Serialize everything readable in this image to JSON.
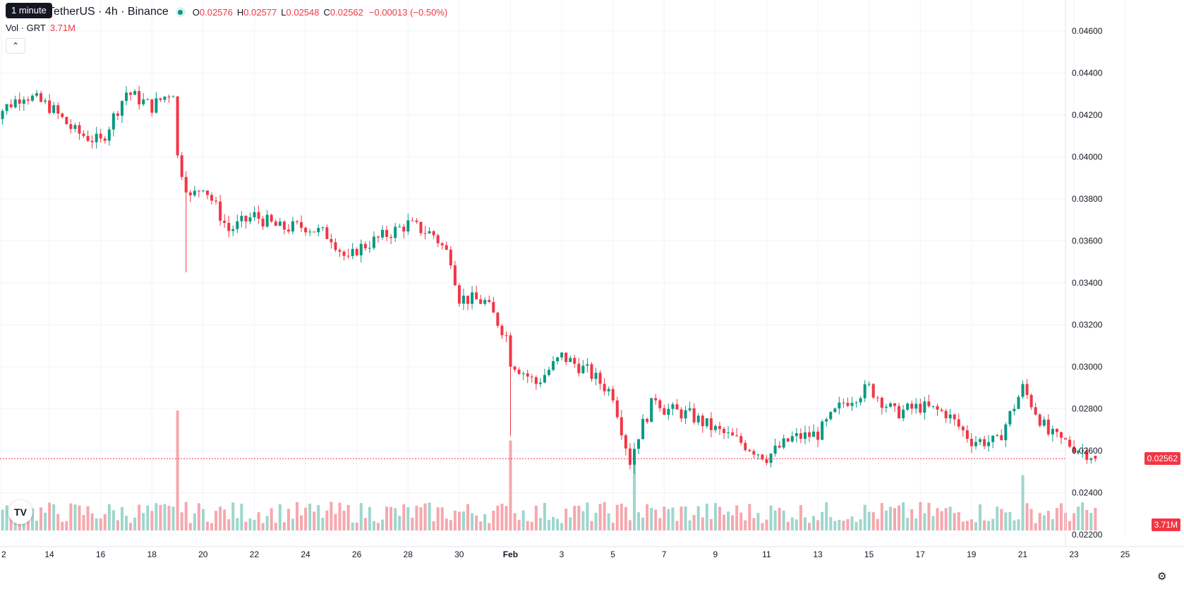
{
  "header": {
    "symbol": "TetherUS · 4h · Binance",
    "ohlc": [
      {
        "key": "O",
        "value": "0.02576"
      },
      {
        "key": "H",
        "value": "0.02577"
      },
      {
        "key": "L",
        "value": "0.02548"
      },
      {
        "key": "C",
        "value": "0.02562"
      }
    ],
    "change": "−0.00013 (−0.50%)",
    "tooltip": "1 minute",
    "collapse_icon": "chevron-up-icon"
  },
  "volume_legend": {
    "label": "Vol · GRT",
    "value": "3.71M"
  },
  "price_label": "0.02562",
  "volume_label": "3.71M",
  "colors": {
    "up": "#089981",
    "down": "#f23645",
    "up_volume": "#9ed6cd",
    "down_volume": "#f6a7ad",
    "grid": "#f0f3fa",
    "last_price_line": "#f23645"
  },
  "chart_data": {
    "type": "candlestick",
    "timeframe": "4h",
    "y_range": [
      0.022,
      0.046
    ],
    "y_ticks": [
      "0.02200",
      "0.02400",
      "0.02600",
      "0.02800",
      "0.03000",
      "0.03200",
      "0.03400",
      "0.03600",
      "0.03800",
      "0.04000",
      "0.04200",
      "0.04400",
      "0.04600"
    ],
    "x_ticks": [
      "2",
      "14",
      "16",
      "18",
      "20",
      "22",
      "24",
      "26",
      "28",
      "30",
      "Feb",
      "3",
      "5",
      "7",
      "9",
      "11",
      "13",
      "15",
      "17",
      "19",
      "21",
      "23",
      "25"
    ],
    "grid": true,
    "price_anchors": [
      {
        "date": "Jan 12",
        "close": 0.0421
      },
      {
        "date": "Jan 13",
        "close": 0.043
      },
      {
        "date": "Jan 14",
        "close": 0.0424
      },
      {
        "date": "Jan 15",
        "close": 0.0412
      },
      {
        "date": "Jan 16",
        "close": 0.0407
      },
      {
        "date": "Jan 17",
        "close": 0.0431
      },
      {
        "date": "Jan 18",
        "close": 0.0424
      },
      {
        "date": "Jan 18 20:00",
        "close": 0.0432
      },
      {
        "date": "Jan 19",
        "close": 0.04
      },
      {
        "date": "Jan 19 12:00",
        "close": 0.038
      },
      {
        "date": "Jan 20",
        "close": 0.0387
      },
      {
        "date": "Jan 21",
        "close": 0.0365
      },
      {
        "date": "Jan 22",
        "close": 0.0372
      },
      {
        "date": "Jan 23",
        "close": 0.0366
      },
      {
        "date": "Jan 24",
        "close": 0.0367
      },
      {
        "date": "Jan 25",
        "close": 0.0362
      },
      {
        "date": "Jan 25 16:00",
        "close": 0.035
      },
      {
        "date": "Jan 26",
        "close": 0.0356
      },
      {
        "date": "Jan 27",
        "close": 0.0362
      },
      {
        "date": "Jan 28",
        "close": 0.0368
      },
      {
        "date": "Jan 29",
        "close": 0.0363
      },
      {
        "date": "Jan 29 16:00",
        "close": 0.0352
      },
      {
        "date": "Jan 30",
        "close": 0.0333
      },
      {
        "date": "Jan 31",
        "close": 0.0331
      },
      {
        "date": "Jan 31 20:00",
        "close": 0.0315
      },
      {
        "date": "Feb 1",
        "close": 0.0303
      },
      {
        "date": "Feb 2",
        "close": 0.0292
      },
      {
        "date": "Feb 3",
        "close": 0.0305
      },
      {
        "date": "Feb 4",
        "close": 0.0298
      },
      {
        "date": "Feb 5",
        "close": 0.0287
      },
      {
        "date": "Feb 5 16:00",
        "close": 0.0255
      },
      {
        "date": "Feb 6",
        "close": 0.0268
      },
      {
        "date": "Feb 6 16:00",
        "close": 0.0286
      },
      {
        "date": "Feb 7",
        "close": 0.028
      },
      {
        "date": "Feb 8",
        "close": 0.0277
      },
      {
        "date": "Feb 9",
        "close": 0.027
      },
      {
        "date": "Feb 10",
        "close": 0.0264
      },
      {
        "date": "Feb 11",
        "close": 0.0257
      },
      {
        "date": "Feb 12",
        "close": 0.0266
      },
      {
        "date": "Feb 13",
        "close": 0.0268
      },
      {
        "date": "Feb 14",
        "close": 0.0283
      },
      {
        "date": "Feb 15",
        "close": 0.029
      },
      {
        "date": "Feb 16",
        "close": 0.0278
      },
      {
        "date": "Feb 17",
        "close": 0.0281
      },
      {
        "date": "Feb 18",
        "close": 0.0278
      },
      {
        "date": "Feb 19",
        "close": 0.0265
      },
      {
        "date": "Feb 20",
        "close": 0.0264
      },
      {
        "date": "Feb 21",
        "close": 0.029
      },
      {
        "date": "Feb 22",
        "close": 0.0268
      },
      {
        "date": "Feb 23",
        "close": 0.0262
      },
      {
        "date": "Feb 24",
        "close": 0.02562
      }
    ],
    "volume_spikes": [
      {
        "date": "Jan 19",
        "relative": 1.0
      },
      {
        "date": "Feb 1",
        "relative": 0.75
      },
      {
        "date": "Feb 5 20:00",
        "relative": 0.57
      },
      {
        "date": "Feb 21",
        "relative": 0.46
      }
    ]
  }
}
